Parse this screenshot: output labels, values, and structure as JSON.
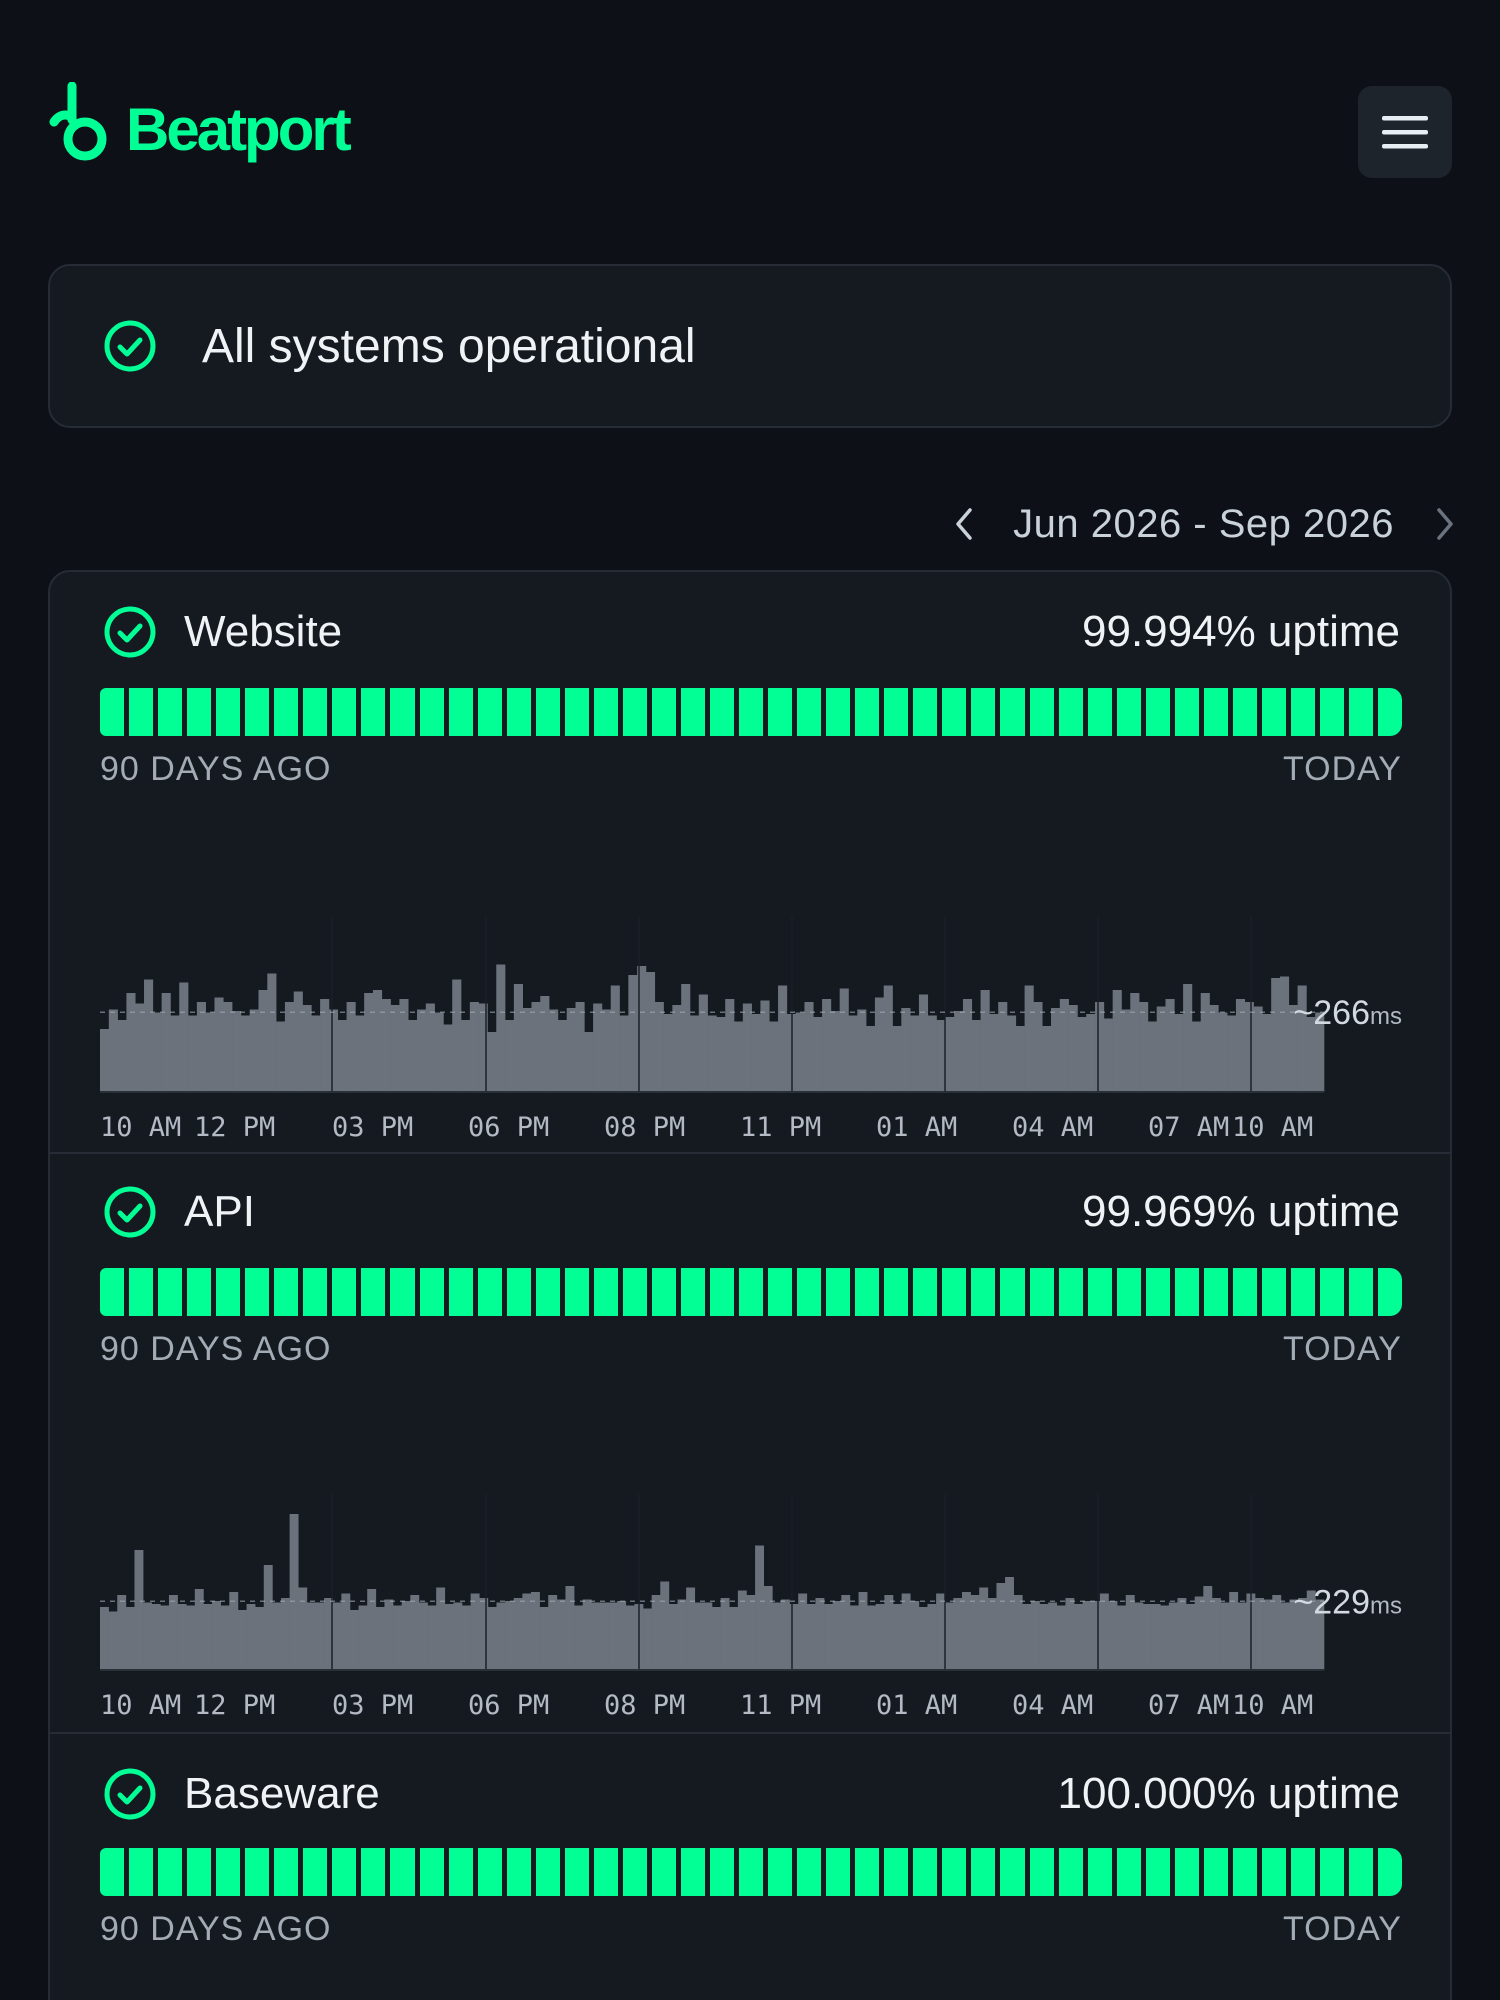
{
  "brand": {
    "name": "Beatport",
    "color": "#01ff95"
  },
  "menu": {
    "icon": "hamburger-menu-icon"
  },
  "status": {
    "text": "All systems operational",
    "icon": "check-circle-icon"
  },
  "range": {
    "label": "Jun 2026 - Sep 2026",
    "prev_icon": "chevron-left-icon",
    "next_icon": "chevron-right-icon"
  },
  "uptime_labels": {
    "start": "90 DAYS AGO",
    "end": "TODAY"
  },
  "colors": {
    "operational": "#01ff95",
    "bar_fill": "#6c727c"
  },
  "components": [
    {
      "name": "Website",
      "uptime": "99.994% uptime",
      "days": 45,
      "response_time": {
        "value": "~266",
        "unit": "ms",
        "avg": 266,
        "ticks": [
          "10 AM",
          "12 PM",
          "03 PM",
          "06 PM",
          "08 PM",
          "11 PM",
          "01 AM",
          "04 AM",
          "07 AM",
          "10 AM"
        ],
        "values": [
          210,
          275,
          240,
          330,
          295,
          375,
          265,
          330,
          255,
          365,
          255,
          300,
          265,
          315,
          300,
          270,
          255,
          275,
          340,
          395,
          235,
          300,
          335,
          290,
          255,
          310,
          275,
          240,
          300,
          255,
          330,
          340,
          310,
          290,
          310,
          240,
          275,
          295,
          265,
          225,
          375,
          240,
          300,
          295,
          200,
          425,
          240,
          360,
          280,
          300,
          320,
          275,
          240,
          280,
          300,
          200,
          295,
          275,
          355,
          255,
          390,
          420,
          400,
          300,
          260,
          290,
          360,
          255,
          325,
          255,
          250,
          310,
          235,
          295,
          260,
          305,
          235,
          355,
          260,
          265,
          300,
          250,
          310,
          270,
          345,
          255,
          275,
          220,
          315,
          355,
          220,
          280,
          255,
          325,
          255,
          240,
          250,
          270,
          310,
          240,
          340,
          260,
          300,
          255,
          220,
          355,
          300,
          220,
          280,
          310,
          290,
          250,
          260,
          300,
          245,
          340,
          275,
          330,
          300,
          235,
          285,
          310,
          260,
          360,
          235,
          330,
          290,
          265,
          255,
          310,
          300,
          285,
          260,
          380,
          385,
          290,
          355,
          250,
          265
        ]
      }
    },
    {
      "name": "API",
      "uptime": "99.969% uptime",
      "days": 45,
      "response_time": {
        "value": "~229",
        "unit": "ms",
        "avg": 229,
        "ticks": [
          "10 AM",
          "12 PM",
          "03 PM",
          "06 PM",
          "08 PM",
          "11 PM",
          "01 AM",
          "04 AM",
          "07 AM",
          "10 AM"
        ],
        "values": [
          210,
          195,
          250,
          210,
          400,
          225,
          220,
          215,
          250,
          220,
          215,
          270,
          220,
          230,
          215,
          260,
          200,
          220,
          210,
          350,
          225,
          240,
          520,
          275,
          225,
          225,
          240,
          225,
          255,
          200,
          215,
          270,
          210,
          235,
          215,
          230,
          250,
          225,
          215,
          275,
          220,
          225,
          215,
          255,
          240,
          210,
          225,
          230,
          240,
          255,
          260,
          210,
          250,
          235,
          280,
          215,
          235,
          225,
          225,
          225,
          230,
          215,
          220,
          205,
          250,
          295,
          220,
          235,
          275,
          225,
          225,
          210,
          240,
          210,
          265,
          250,
          415,
          280,
          225,
          235,
          220,
          255,
          220,
          240,
          220,
          230,
          250,
          215,
          260,
          215,
          220,
          250,
          220,
          255,
          230,
          210,
          220,
          255,
          225,
          240,
          260,
          250,
          275,
          240,
          290,
          310,
          250,
          220,
          230,
          220,
          225,
          215,
          240,
          220,
          230,
          230,
          255,
          230,
          215,
          250,
          225,
          220,
          220,
          215,
          225,
          240,
          220,
          245,
          280,
          240,
          225,
          260,
          225,
          255,
          240,
          235,
          250,
          225,
          235,
          240,
          265,
          235
        ]
      }
    },
    {
      "name": "Baseware",
      "uptime": "100.000% uptime",
      "days": 45
    }
  ]
}
